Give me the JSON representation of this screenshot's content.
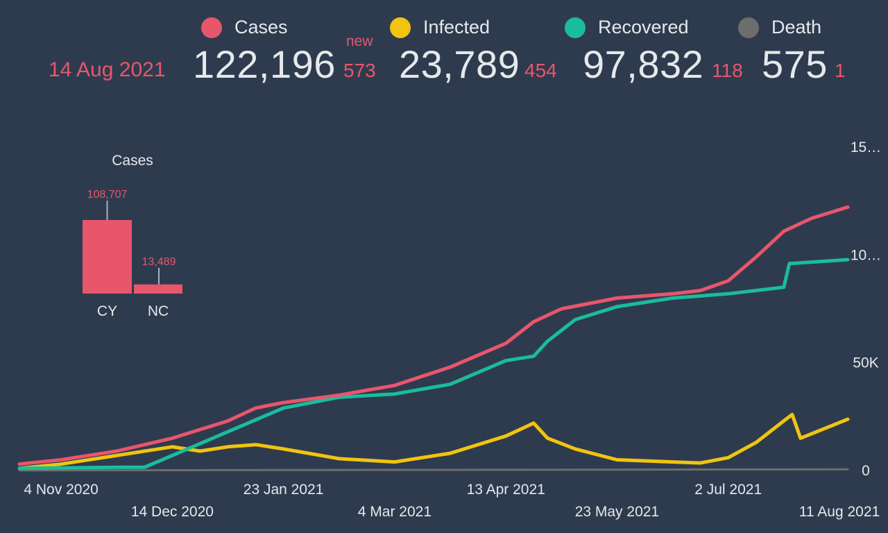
{
  "header": {
    "date": "14 Aug 2021",
    "new_label": "new",
    "stats": [
      {
        "key": "cases",
        "label": "Cases",
        "total": "122,196",
        "delta": "573"
      },
      {
        "key": "infected",
        "label": "Infected",
        "total": "23,789",
        "delta": "454"
      },
      {
        "key": "recovered",
        "label": "Recovered",
        "total": "97,832",
        "delta": "118"
      },
      {
        "key": "death",
        "label": "Death",
        "total": "575",
        "delta": "1"
      }
    ]
  },
  "colors": {
    "background": "#2e3b4e",
    "cases": "#e8566c",
    "infected": "#f1c40f",
    "recovered": "#1abc9c",
    "death": "#6d6d6d",
    "text": "#e6e8eb"
  },
  "chart_data": [
    {
      "type": "line",
      "title": "",
      "xlabel": "",
      "ylabel": "",
      "x_ticks": [
        "4 Nov 2020",
        "14 Dec 2020",
        "23 Jan 2021",
        "4 Mar 2021",
        "13 Apr 2021",
        "23 May 2021",
        "2 Jul 2021",
        "11 Aug 2021"
      ],
      "y_ticks": [
        "0",
        "50K",
        "10…",
        "15…"
      ],
      "ylim": [
        0,
        150000
      ],
      "grid": false,
      "y_axis_side": "right",
      "series": [
        {
          "name": "Cases",
          "color": "#e8566c",
          "points": [
            [
              "2020-10-20",
              3000
            ],
            [
              "2020-11-04",
              5000
            ],
            [
              "2020-11-24",
              9000
            ],
            [
              "2020-12-14",
              15000
            ],
            [
              "2021-01-03",
              23000
            ],
            [
              "2021-01-13",
              29000
            ],
            [
              "2021-01-23",
              31500
            ],
            [
              "2021-02-12",
              35000
            ],
            [
              "2021-03-04",
              39500
            ],
            [
              "2021-03-24",
              48000
            ],
            [
              "2021-04-13",
              59000
            ],
            [
              "2021-04-23",
              69000
            ],
            [
              "2021-05-03",
              75000
            ],
            [
              "2021-05-23",
              80000
            ],
            [
              "2021-06-12",
              82000
            ],
            [
              "2021-06-22",
              83500
            ],
            [
              "2021-07-02",
              88000
            ],
            [
              "2021-07-12",
              99000
            ],
            [
              "2021-07-22",
              111000
            ],
            [
              "2021-08-01",
              117000
            ],
            [
              "2021-08-14",
              122196
            ]
          ]
        },
        {
          "name": "Infected",
          "color": "#f1c40f",
          "points": [
            [
              "2020-10-20",
              1000
            ],
            [
              "2020-11-04",
              3000
            ],
            [
              "2020-11-24",
              7000
            ],
            [
              "2020-12-14",
              11000
            ],
            [
              "2020-12-24",
              9000
            ],
            [
              "2021-01-03",
              11000
            ],
            [
              "2021-01-13",
              12000
            ],
            [
              "2021-01-23",
              10000
            ],
            [
              "2021-02-12",
              5500
            ],
            [
              "2021-03-04",
              4000
            ],
            [
              "2021-03-24",
              8000
            ],
            [
              "2021-04-13",
              16000
            ],
            [
              "2021-04-23",
              22000
            ],
            [
              "2021-04-28",
              15000
            ],
            [
              "2021-05-08",
              10000
            ],
            [
              "2021-05-23",
              5000
            ],
            [
              "2021-06-12",
              4000
            ],
            [
              "2021-06-22",
              3500
            ],
            [
              "2021-07-02",
              6000
            ],
            [
              "2021-07-12",
              13000
            ],
            [
              "2021-07-22",
              23000
            ],
            [
              "2021-07-25",
              26000
            ],
            [
              "2021-07-28",
              15000
            ],
            [
              "2021-08-14",
              23789
            ]
          ]
        },
        {
          "name": "Recovered",
          "color": "#1abc9c",
          "points": [
            [
              "2020-10-20",
              1000
            ],
            [
              "2020-11-24",
              1500
            ],
            [
              "2020-12-04",
              1500
            ],
            [
              "2020-12-14",
              7000
            ],
            [
              "2021-01-03",
              18000
            ],
            [
              "2021-01-23",
              29000
            ],
            [
              "2021-02-12",
              34000
            ],
            [
              "2021-03-04",
              35500
            ],
            [
              "2021-03-24",
              40000
            ],
            [
              "2021-04-13",
              51000
            ],
            [
              "2021-04-23",
              53000
            ],
            [
              "2021-04-28",
              60000
            ],
            [
              "2021-05-08",
              70000
            ],
            [
              "2021-05-23",
              76000
            ],
            [
              "2021-06-12",
              80000
            ],
            [
              "2021-07-02",
              82000
            ],
            [
              "2021-07-22",
              85000
            ],
            [
              "2021-07-24",
              96000
            ],
            [
              "2021-08-14",
              97832
            ]
          ]
        },
        {
          "name": "Death",
          "color": "#6d6d6d",
          "points": [
            [
              "2020-10-20",
              50
            ],
            [
              "2021-01-23",
              250
            ],
            [
              "2021-05-23",
              420
            ],
            [
              "2021-08-14",
              575
            ]
          ]
        }
      ]
    },
    {
      "type": "bar",
      "title": "Cases",
      "categories": [
        "CY",
        "NC"
      ],
      "values": [
        108707,
        13489
      ],
      "value_labels": [
        "108,707",
        "13,489"
      ],
      "color": "#e8566c"
    }
  ]
}
